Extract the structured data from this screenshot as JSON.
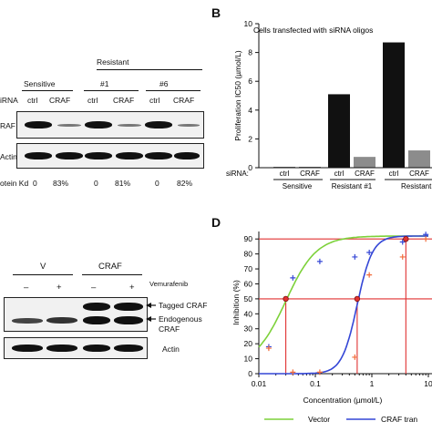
{
  "panelA": {
    "group_sensitive": "Sensitive",
    "group_resistant": "Resistant",
    "sub_1": "#1",
    "sub_6": "#6",
    "row_sirna": "iRNA",
    "lanes": [
      "ctrl",
      "CRAF",
      "ctrl",
      "CRAF",
      "ctrl",
      "CRAF"
    ],
    "row_craf": "RAF",
    "row_actin": "Actin",
    "row_kd": "otein Kd",
    "kd_values": [
      "0",
      "83%",
      "0",
      "81%",
      "0",
      "82%"
    ]
  },
  "panelB": {
    "letter": "B",
    "title": "Cells transfected with siRNA oligos",
    "ylabel": "Proliferation IC50 (µmol/L)",
    "yticks": [
      "0",
      "2",
      "4",
      "6",
      "8",
      "10"
    ],
    "sirna_label": "siRNA:",
    "lanes": [
      "ctrl",
      "CRAF",
      "ctrl",
      "CRAF",
      "ctrl",
      "CRAF"
    ],
    "groups": [
      "Sensitive",
      "Resistant #1",
      "Resistant"
    ]
  },
  "panelC": {
    "group_v": "V",
    "group_craf": "CRAF",
    "vemurafenib": "Vemurafenib",
    "signs": [
      "–",
      "+",
      "–",
      "+"
    ],
    "tagged": "Tagged CRAF",
    "endogenous_1": "Endogenous",
    "endogenous_2": "CRAF",
    "actin": "Actin"
  },
  "panelD": {
    "letter": "D",
    "ylabel": "Inhibition (%)",
    "xlabel": "Concentration (µmol/L)",
    "yticks": [
      "0",
      "10",
      "20",
      "30",
      "40",
      "50",
      "60",
      "70",
      "80",
      "90"
    ],
    "xticks": [
      "0.01",
      "0.1",
      "1",
      "10"
    ],
    "legend_vector": "Vector",
    "legend_craf": "CRAF tran"
  },
  "chart_data": [
    {
      "type": "bar",
      "title": "Cells transfected with siRNA oligos",
      "ylabel": "Proliferation IC50 (µmol/L)",
      "ylim": [
        0,
        10
      ],
      "categories": [
        "Sensitive ctrl",
        "Sensitive CRAF",
        "Resistant #1 ctrl",
        "Resistant #1 CRAF",
        "Resistant ctrl",
        "Resistant CRAF"
      ],
      "values": [
        0.05,
        0.05,
        5.1,
        0.75,
        8.7,
        1.2
      ],
      "colors": [
        "#111111",
        "#111111",
        "#111111",
        "#8c8c8c",
        "#111111",
        "#8c8c8c"
      ]
    },
    {
      "type": "scatter",
      "xlabel": "Concentration (µmol/L)",
      "ylabel": "Inhibition (%)",
      "xscale": "log",
      "xlim": [
        0.01,
        10
      ],
      "ylim": [
        0,
        95
      ],
      "series": [
        {
          "name": "Vector",
          "color": "#7dd13a",
          "marker_color": "#3446d6",
          "x": [
            0.015,
            0.04,
            0.12,
            0.5,
            0.9,
            3.5,
            9.0
          ],
          "y": [
            18,
            64,
            75,
            78,
            81,
            88,
            93
          ],
          "ic50": 0.03
        },
        {
          "name": "CRAF tran",
          "color": "#3446d6",
          "marker_color": "#f26b3a",
          "x": [
            0.015,
            0.04,
            0.12,
            0.5,
            0.9,
            3.5,
            9.0
          ],
          "y": [
            17,
            1,
            1,
            11,
            66,
            78,
            90
          ],
          "ic50": 0.55
        }
      ],
      "reference_lines_y": [
        50,
        90
      ],
      "legend_position": "bottom"
    }
  ]
}
